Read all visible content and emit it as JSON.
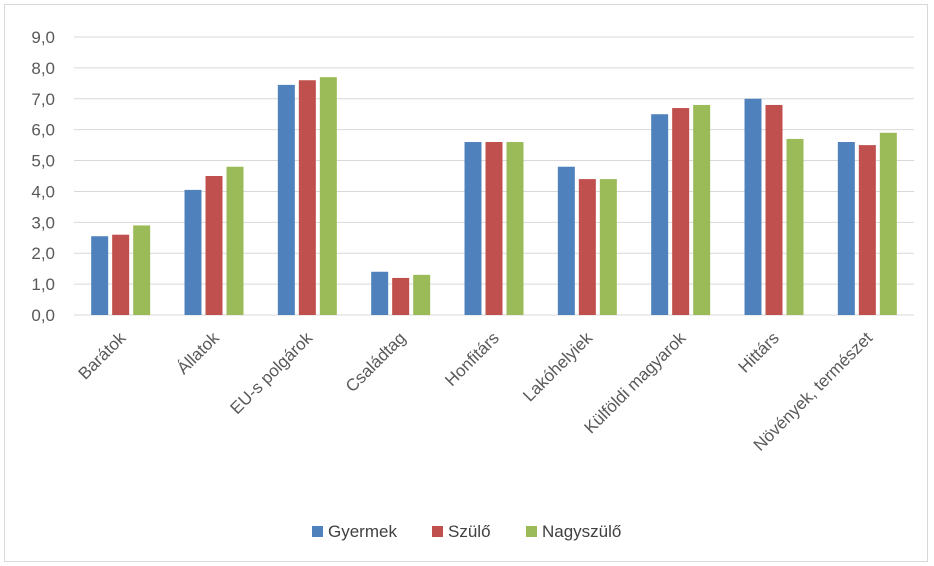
{
  "chart_data": {
    "type": "bar",
    "categories": [
      "Barátok",
      "Állatok",
      "EU-s polgárok",
      "Családtag",
      "Honfitárs",
      "Lakóhelyiek",
      "Külföldi magyarok",
      "Hittárs",
      "Növények, természet"
    ],
    "series": [
      {
        "name": "Gyermek",
        "color": "#4f81bd",
        "values": [
          2.55,
          4.05,
          7.45,
          1.4,
          5.6,
          4.8,
          6.5,
          7.0,
          5.6
        ]
      },
      {
        "name": "Szülő",
        "color": "#c0504d",
        "values": [
          2.6,
          4.5,
          7.6,
          1.2,
          5.6,
          4.4,
          6.7,
          6.8,
          5.5
        ]
      },
      {
        "name": "Nagyszülő",
        "color": "#9bbb59",
        "values": [
          2.9,
          4.8,
          7.7,
          1.3,
          5.6,
          4.4,
          6.8,
          5.7,
          5.9
        ]
      }
    ],
    "yticks": [
      "0,0",
      "1,0",
      "2,0",
      "3,0",
      "4,0",
      "5,0",
      "6,0",
      "7,0",
      "8,0",
      "9,0"
    ],
    "ylim": [
      0,
      9
    ],
    "grid": true,
    "legend_position": "bottom"
  }
}
